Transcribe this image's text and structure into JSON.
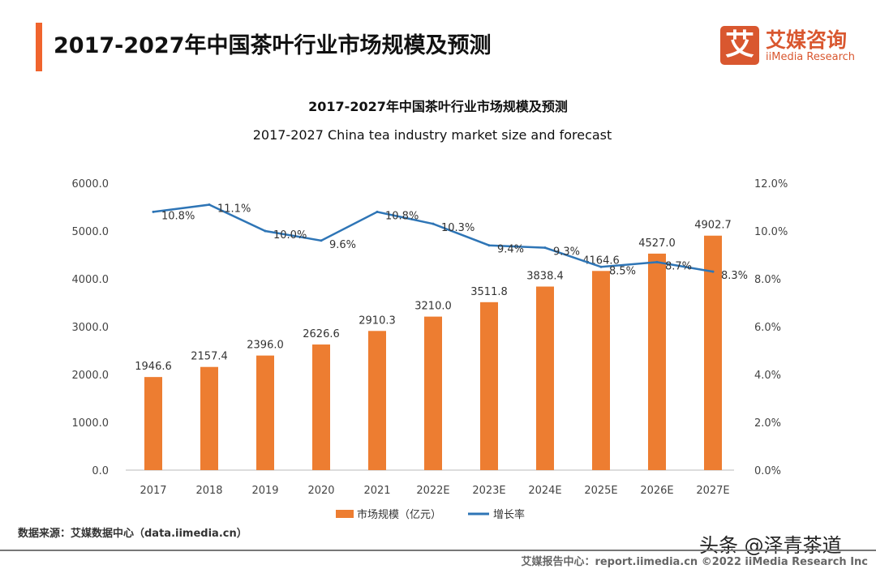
{
  "header": {
    "title": "2017-2027年中国茶叶行业市场规模及预测",
    "logo_mark": "艾",
    "logo_cn": "艾媒咨询",
    "logo_en": "iiMedia Research"
  },
  "chart_data": {
    "type": "bar+line",
    "title": "2017-2027年中国茶叶行业市场规模及预测",
    "subtitle": "2017-2027 China tea industry market size and forecast",
    "categories": [
      "2017",
      "2018",
      "2019",
      "2020",
      "2021",
      "2022E",
      "2023E",
      "2024E",
      "2025E",
      "2026E",
      "2027E"
    ],
    "series": [
      {
        "name": "市场规模（亿元）",
        "type": "bar",
        "axis": "left",
        "color": "#ed7d31",
        "values": [
          1946.6,
          2157.4,
          2396.0,
          2626.6,
          2910.3,
          3210.0,
          3511.8,
          3838.4,
          4164.6,
          4527.0,
          4902.7
        ],
        "labels": [
          "1946.6",
          "2157.4",
          "2396.0",
          "2626.6",
          "2910.3",
          "3210.0",
          "3511.8",
          "3838.4",
          "4164.6",
          "4527.0",
          "4902.7"
        ]
      },
      {
        "name": "增长率",
        "type": "line",
        "axis": "right",
        "color": "#2e75b6",
        "values": [
          10.8,
          11.1,
          10.0,
          9.6,
          10.8,
          10.3,
          9.4,
          9.3,
          8.5,
          8.7,
          8.3
        ],
        "labels": [
          "10.8%",
          "11.1%",
          "10.0%",
          "9.6%",
          "10.8%",
          "10.3%",
          "9.4%",
          "9.3%",
          "8.5%",
          "8.7%",
          "8.3%"
        ]
      }
    ],
    "ylim_left": [
      0,
      6000
    ],
    "ylim_right": [
      0,
      12
    ],
    "left_ticks": [
      "0.0",
      "1000.0",
      "2000.0",
      "3000.0",
      "4000.0",
      "5000.0",
      "6000.0"
    ],
    "right_ticks": [
      "0.0%",
      "2.0%",
      "4.0%",
      "6.0%",
      "8.0%",
      "10.0%",
      "12.0%"
    ],
    "grid": false,
    "legend": "bottom"
  },
  "footer": {
    "source": "数据来源：艾媒数据中心（data.iimedia.cn）",
    "watermark": "头条 @泽青茶道",
    "copyright": "艾媒报告中心：report.iimedia.cn  ©2022  iiMedia Research  Inc"
  }
}
